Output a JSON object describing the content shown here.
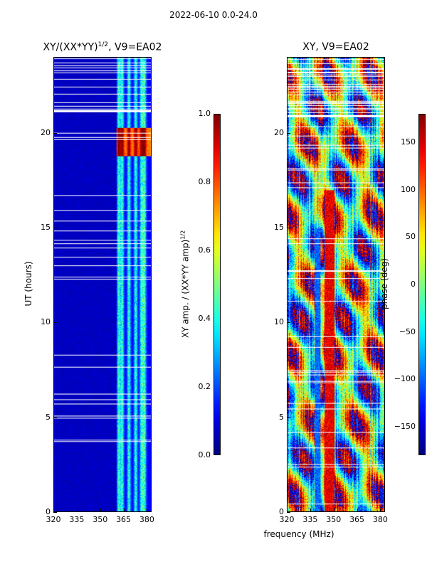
{
  "suptitle": "2022-06-10 0.0-24.0",
  "chart_data": [
    {
      "type": "heatmap",
      "title_main": "XY/(XX*YY)",
      "title_sup": "1/2",
      "title_tail": ", V9=EA02",
      "xlabel": "",
      "ylabel": "UT (hours)",
      "xlim": [
        320,
        383
      ],
      "ylim": [
        0,
        24
      ],
      "xticks": [
        "320",
        "335",
        "350",
        "365",
        "380"
      ],
      "yticks": [
        "0",
        "5",
        "10",
        "15",
        "20"
      ],
      "colorbar": {
        "label_main": "XY amp. / (XX*YY amp)",
        "label_sup": "1/2",
        "range": [
          0.0,
          1.0
        ],
        "ticks": [
          "0.0",
          "0.2",
          "0.4",
          "0.6",
          "0.8",
          "1.0"
        ],
        "colormap": "jet"
      }
    },
    {
      "type": "heatmap",
      "title": "XY, V9=EA02",
      "xlabel": "frequency (MHz)",
      "ylabel": "",
      "xlim": [
        320,
        383
      ],
      "ylim": [
        0,
        24
      ],
      "xticks": [
        "320",
        "335",
        "350",
        "365",
        "380"
      ],
      "yticks": [
        "0",
        "5",
        "10",
        "15",
        "20"
      ],
      "colorbar": {
        "label": "phase (deg)",
        "range": [
          -180,
          180
        ],
        "ticks": [
          "-150",
          "-100",
          "-50",
          "0",
          "50",
          "100",
          "150"
        ],
        "colormap": "jet"
      }
    }
  ]
}
